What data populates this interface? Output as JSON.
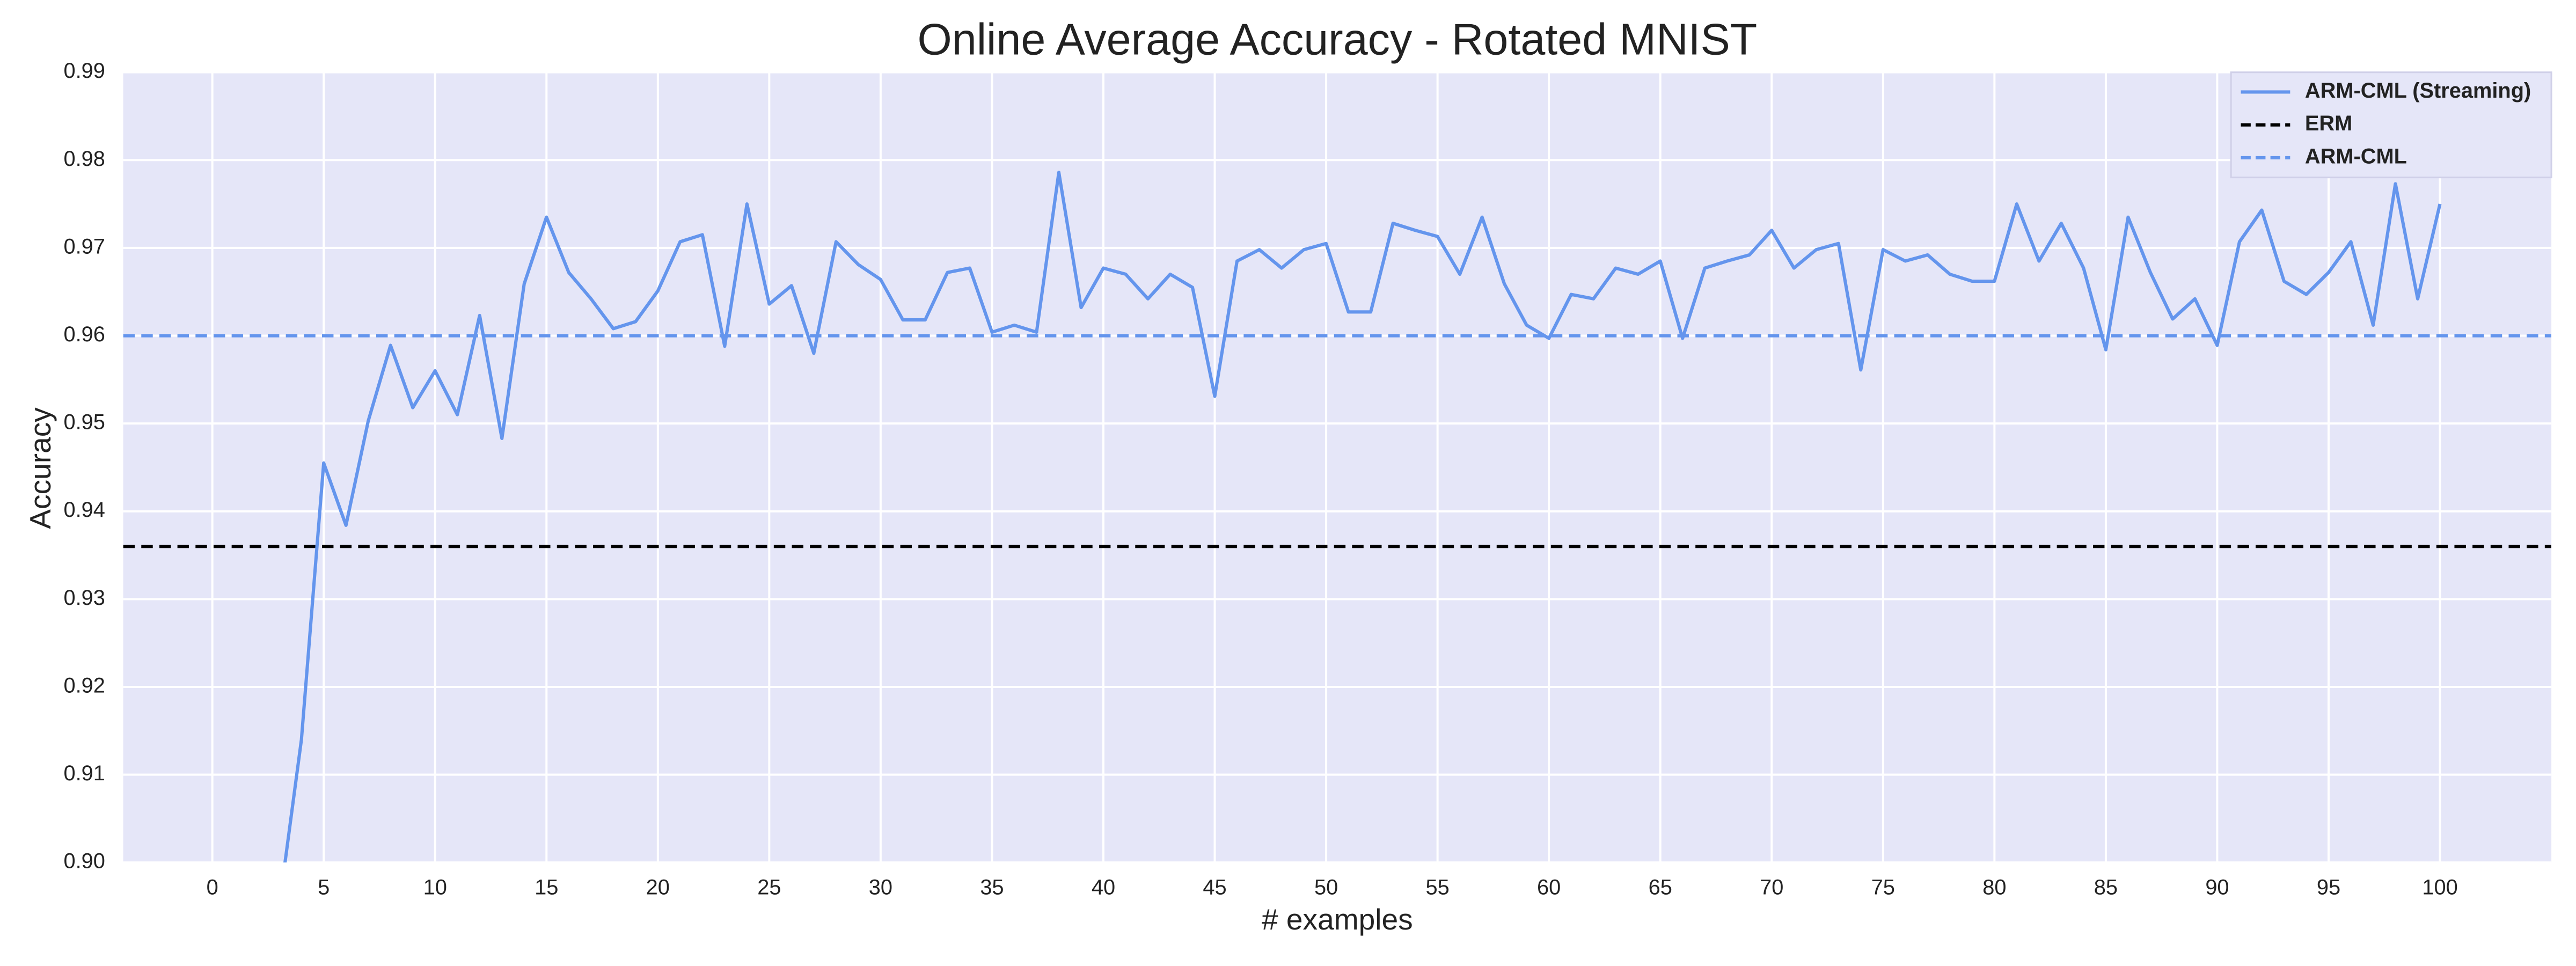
{
  "chart_data": {
    "type": "line",
    "title": "Online Average Accuracy - Rotated MNIST",
    "xlabel": "# examples",
    "ylabel": "Accuracy",
    "xlim": [
      -4,
      105
    ],
    "ylim": [
      0.9,
      0.99
    ],
    "xticks": [
      0,
      5,
      10,
      15,
      20,
      25,
      30,
      35,
      40,
      45,
      50,
      55,
      60,
      65,
      70,
      75,
      80,
      85,
      90,
      95,
      100
    ],
    "yticks": [
      {
        "value": 0.9,
        "label": "0.90"
      },
      0.91,
      0.92,
      0.93,
      0.94,
      0.95,
      0.96,
      0.97,
      0.98,
      0.99
    ],
    "grid": true,
    "legend": "upper right",
    "series": [
      {
        "name": "ARM-CML (Streaming)",
        "color": "#6495ed",
        "x": [
          3,
          4,
          5,
          6,
          7,
          8,
          9,
          10,
          11,
          12,
          13,
          14,
          15,
          16,
          17,
          18,
          19,
          20,
          21,
          22,
          23,
          24,
          25,
          26,
          27,
          28,
          29,
          30,
          31,
          32,
          33,
          34,
          35,
          36,
          37,
          38,
          39,
          40,
          41,
          42,
          43,
          44,
          45,
          46,
          47,
          48,
          49,
          50,
          51,
          52,
          53,
          54,
          55,
          56,
          57,
          58,
          59,
          60,
          61,
          62,
          63,
          64,
          65,
          66,
          67,
          68,
          69,
          70,
          71,
          72,
          73,
          74,
          75,
          76,
          77,
          78,
          79,
          80,
          81,
          82,
          83,
          84,
          85,
          86,
          87,
          88,
          89,
          90,
          91,
          92,
          93,
          94,
          95,
          96,
          97,
          98,
          99,
          100
        ],
        "values": [
          0.895,
          0.914,
          0.9455,
          0.9384,
          0.9503,
          0.9589,
          0.9518,
          0.956,
          0.951,
          0.9623,
          0.9483,
          0.9659,
          0.9735,
          0.9672,
          0.9642,
          0.9608,
          0.9616,
          0.9651,
          0.9707,
          0.9715,
          0.9588,
          0.975,
          0.9636,
          0.9657,
          0.958,
          0.9707,
          0.9681,
          0.9664,
          0.9618,
          0.9618,
          0.9672,
          0.9677,
          0.9604,
          0.9612,
          0.9604,
          0.9786,
          0.9632,
          0.9677,
          0.967,
          0.9642,
          0.967,
          0.9655,
          0.9531,
          0.9685,
          0.9698,
          0.9677,
          0.9698,
          0.9705,
          0.9627,
          0.9627,
          0.9728,
          0.972,
          0.9713,
          0.967,
          0.9735,
          0.9659,
          0.9612,
          0.9597,
          0.9647,
          0.9642,
          0.9677,
          0.967,
          0.9685,
          0.9597,
          0.9677,
          0.9685,
          0.9692,
          0.972,
          0.9677,
          0.9698,
          0.9705,
          0.9561,
          0.9698,
          0.9685,
          0.9692,
          0.967,
          0.9662,
          0.9662,
          0.975,
          0.9685,
          0.9728,
          0.9677,
          0.9584,
          0.9735,
          0.9672,
          0.9619,
          0.9642,
          0.9589,
          0.9707,
          0.9743,
          0.9662,
          0.9647,
          0.9672,
          0.9707,
          0.9612,
          0.9773,
          0.9642,
          0.975
        ]
      }
    ],
    "hlines": [
      {
        "name": "ERM",
        "color": "#000000",
        "value": 0.936,
        "dashed": true
      },
      {
        "name": "ARM-CML",
        "color": "#6495ed",
        "value": 0.96,
        "dashed": true
      }
    ]
  }
}
